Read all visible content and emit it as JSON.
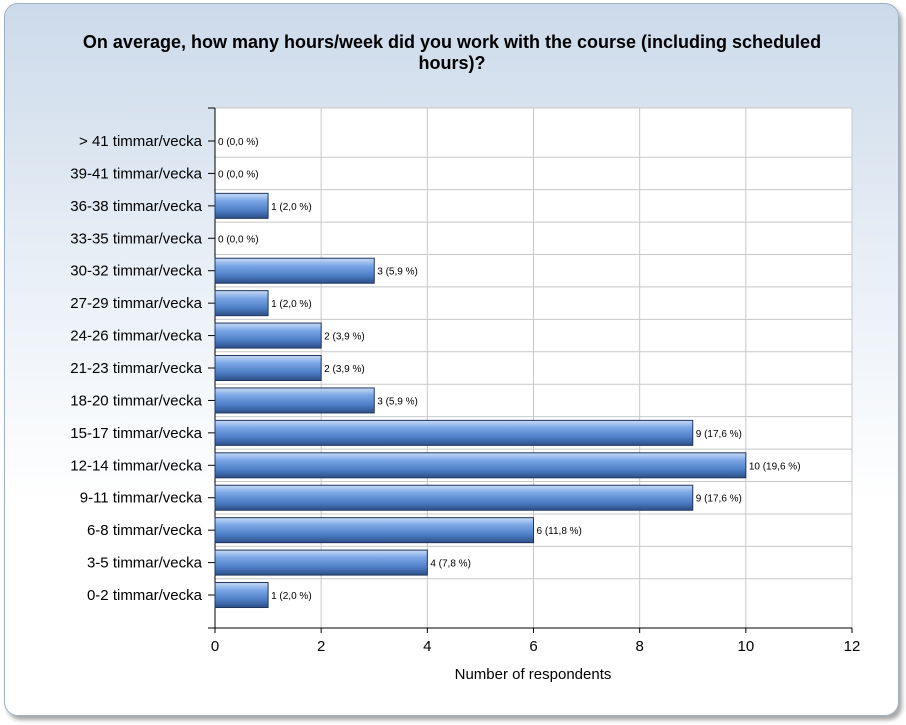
{
  "chart_data": {
    "type": "bar",
    "orientation": "horizontal",
    "title": "On average, how many hours/week did you work with the course (including scheduled hours)?",
    "title_lines": [
      "On average, how many hours/week did you work with the course (including scheduled",
      "hours)?"
    ],
    "xlabel": "Number of respondents",
    "ylabel": "",
    "xlim": [
      0,
      12
    ],
    "xticks": [
      0,
      2,
      4,
      6,
      8,
      10,
      12
    ],
    "grid": true,
    "categories": [
      "> 41 timmar/vecka",
      "39-41 timmar/vecka",
      "36-38 timmar/vecka",
      "33-35 timmar/vecka",
      "30-32 timmar/vecka",
      "27-29 timmar/vecka",
      "24-26 timmar/vecka",
      "21-23 timmar/vecka",
      "18-20 timmar/vecka",
      "15-17 timmar/vecka",
      "12-14 timmar/vecka",
      "9-11 timmar/vecka",
      "6-8 timmar/vecka",
      "3-5 timmar/vecka",
      "0-2 timmar/vecka"
    ],
    "values": [
      0,
      0,
      1,
      0,
      3,
      1,
      2,
      2,
      3,
      9,
      10,
      9,
      6,
      4,
      1
    ],
    "data_labels": [
      "0 (0,0 %)",
      "0 (0,0 %)",
      "1 (2,0 %)",
      "0 (0,0 %)",
      "3 (5,9 %)",
      "1 (2,0 %)",
      "2 (3,9 %)",
      "2 (3,9 %)",
      "3 (5,9 %)",
      "9 (17,6 %)",
      "10 (19,6 %)",
      "9 (17,6 %)",
      "6 (11,8 %)",
      "4 (7,8 %)",
      "1 (2,0 %)"
    ],
    "bar_color": "#5b8fd6"
  }
}
